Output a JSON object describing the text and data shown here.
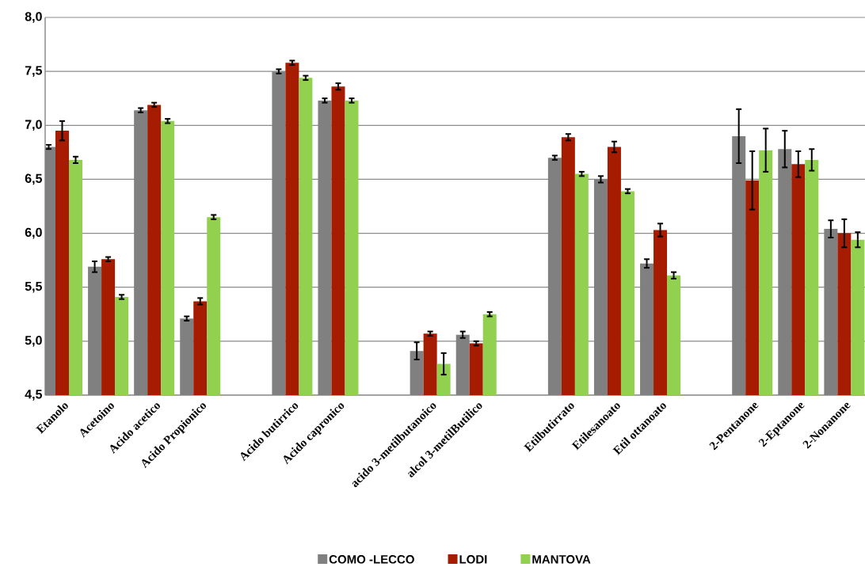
{
  "chart_data": {
    "type": "bar",
    "categories": [
      "Etanolo",
      "Acetoino",
      "Acido acetico",
      "Acido Propionico",
      null,
      "Acido butirrico",
      "Acido capronico",
      null,
      "acido 3-metilbutanoico",
      "alcol 3-metilButilico",
      null,
      "Etilbutirrato",
      "Etilesanoato",
      "Etil ottanoato",
      null,
      "2-Pentanone",
      "2-Eptanone",
      "2-Nonanone"
    ],
    "series": [
      {
        "name": "COMO -LECCO",
        "color": "#808080",
        "values": [
          6.8,
          5.69,
          7.14,
          5.21,
          null,
          7.5,
          7.23,
          null,
          4.91,
          5.06,
          null,
          6.7,
          6.5,
          5.72,
          null,
          6.9,
          6.78,
          6.04
        ],
        "errors": [
          0.02,
          0.05,
          0.02,
          0.02,
          null,
          0.02,
          0.02,
          null,
          0.08,
          0.03,
          null,
          0.02,
          0.03,
          0.04,
          null,
          0.25,
          0.17,
          0.08
        ]
      },
      {
        "name": "LODI",
        "color": "#a61c00",
        "values": [
          6.95,
          5.76,
          7.19,
          5.37,
          null,
          7.58,
          7.36,
          null,
          5.07,
          4.98,
          null,
          6.89,
          6.8,
          6.03,
          null,
          6.49,
          6.64,
          6.0
        ],
        "errors": [
          0.09,
          0.02,
          0.02,
          0.03,
          null,
          0.02,
          0.03,
          null,
          0.02,
          0.02,
          null,
          0.03,
          0.05,
          0.06,
          null,
          0.27,
          0.12,
          0.13
        ]
      },
      {
        "name": "MANTOVA",
        "color": "#92d050",
        "values": [
          6.68,
          5.41,
          7.04,
          6.15,
          null,
          7.44,
          7.23,
          null,
          4.79,
          5.25,
          null,
          6.55,
          6.39,
          5.61,
          null,
          6.77,
          6.68,
          5.94
        ],
        "errors": [
          0.03,
          0.02,
          0.02,
          0.02,
          null,
          0.02,
          0.02,
          null,
          0.1,
          0.02,
          null,
          0.02,
          0.02,
          0.03,
          null,
          0.2,
          0.1,
          0.07
        ]
      }
    ],
    "ylim": [
      4.5,
      8.0
    ],
    "yticks": [
      {
        "value": 4.5,
        "label": "4,5"
      },
      {
        "value": 5.0,
        "label": "5,0"
      },
      {
        "value": 5.5,
        "label": "5,5"
      },
      {
        "value": 6.0,
        "label": "6,0"
      },
      {
        "value": 6.5,
        "label": "6,5"
      },
      {
        "value": 7.0,
        "label": "7,0"
      },
      {
        "value": 7.5,
        "label": "7,5"
      },
      {
        "value": 8.0,
        "label": "8,0"
      }
    ],
    "grid": "y",
    "legend": "bottom"
  }
}
